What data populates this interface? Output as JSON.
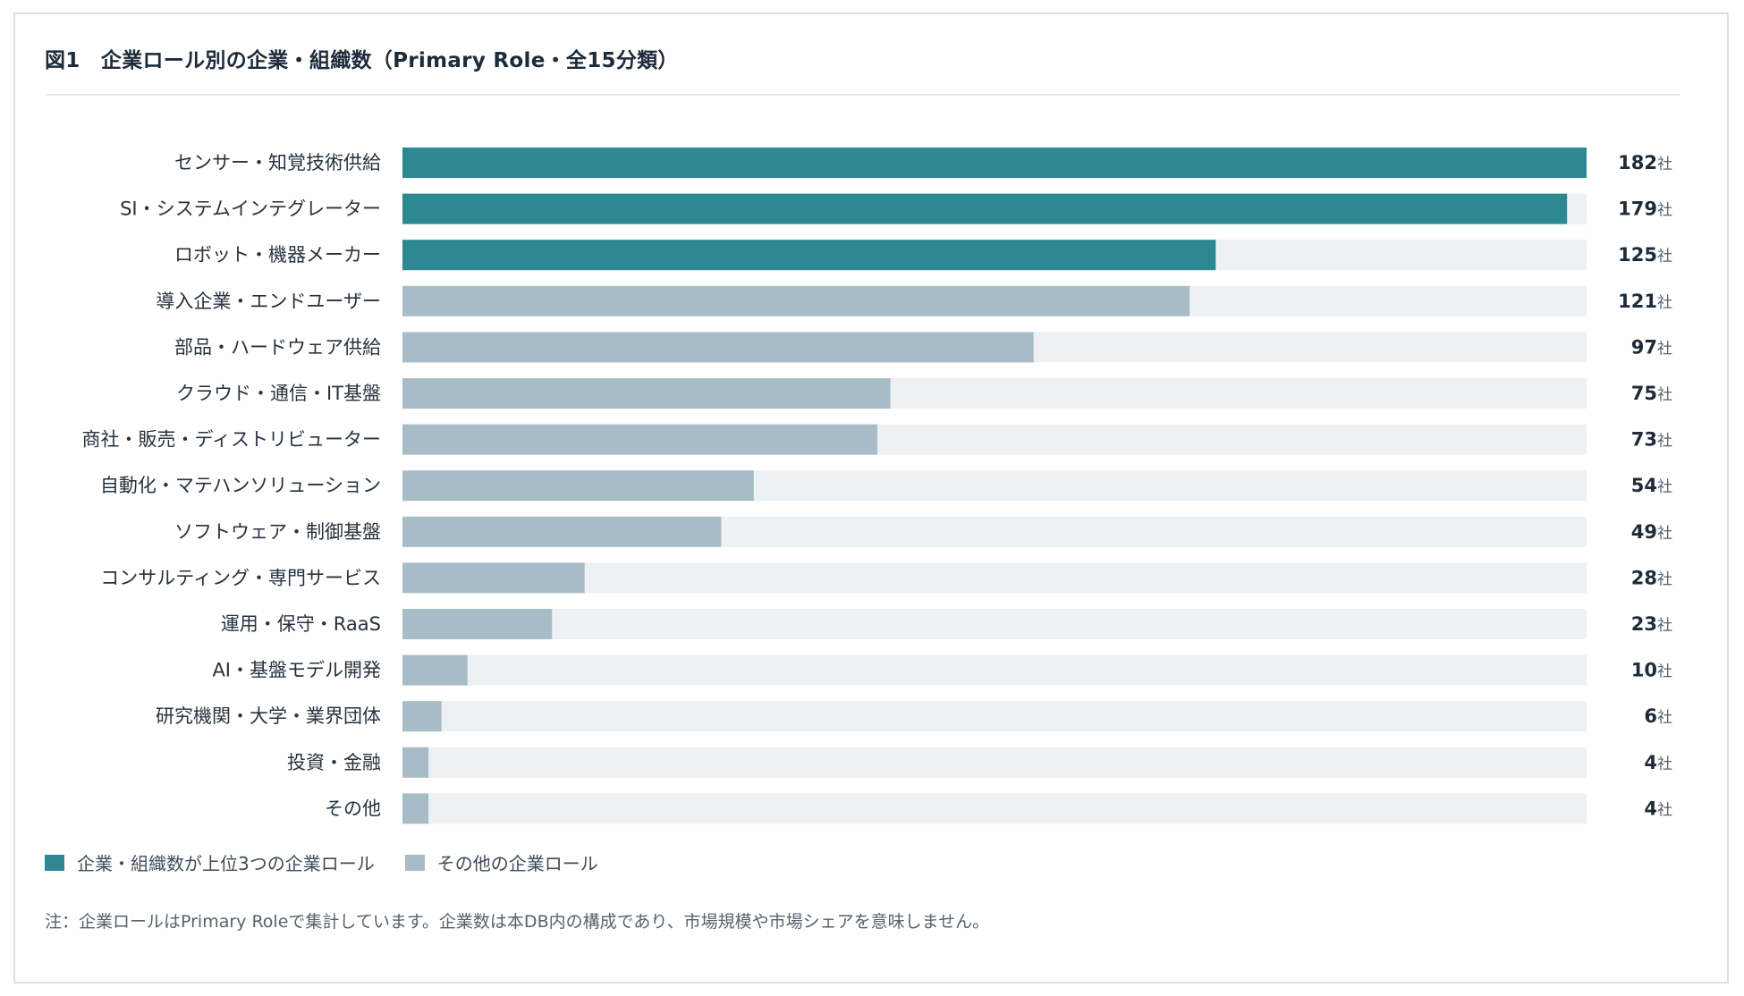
{
  "title": "図1　企業ロール別の企業・組織数（Primary Role・全15分類）",
  "value_suffix": "社",
  "colors": {
    "top3": "#2e8892",
    "other": "#a8bcc8",
    "track": "#edf1f4"
  },
  "legend": {
    "top3_label": "企業・組織数が上位3つの企業ロール",
    "other_label": "その他の企業ロール"
  },
  "note": "注：企業ロールはPrimary Roleで集計しています。企業数は本DB内の構成であり、市場規模や市場シェアを意味しません。",
  "chart_data": {
    "type": "bar",
    "orientation": "horizontal",
    "title": "図1　企業ロール別の企業・組織数（Primary Role・全15分類）",
    "categories": [
      "センサー・知覚技術供給",
      "SI・システムインテグレーター",
      "ロボット・機器メーカー",
      "導入企業・エンドユーザー",
      "部品・ハードウェア供給",
      "クラウド・通信・IT基盤",
      "商社・販売・ディストリビューター",
      "自動化・マテハンソリューション",
      "ソフトウェア・制御基盤",
      "コンサルティング・専門サービス",
      "運用・保守・RaaS",
      "AI・基盤モデル開発",
      "研究機関・大学・業界団体",
      "投資・金融",
      "その他"
    ],
    "values": [
      182,
      179,
      125,
      121,
      97,
      75,
      73,
      54,
      49,
      28,
      23,
      10,
      6,
      4,
      4
    ],
    "highlight_top_n": 3,
    "xlim": [
      0,
      182
    ],
    "xlabel": "",
    "ylabel": "",
    "grid": false,
    "legend_position": "bottom-left"
  }
}
